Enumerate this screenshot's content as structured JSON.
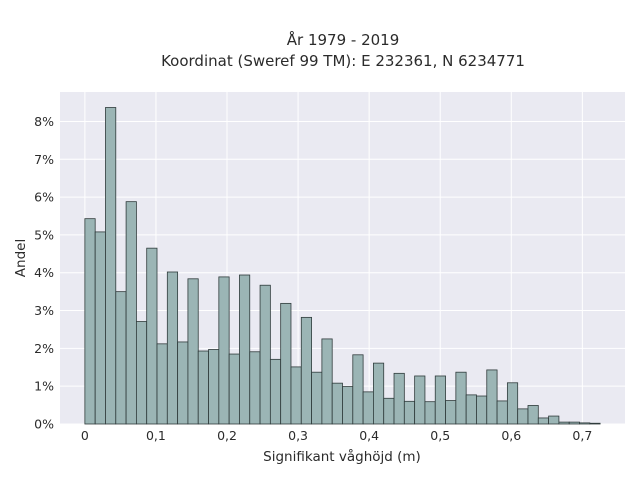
{
  "chart_data": {
    "type": "bar",
    "title_lines": [
      "År 1979 - 2019",
      "Koordinat (Sweref 99 TM): E 232361, N 6234771"
    ],
    "xlabel": "Signifikant våghöjd (m)",
    "ylabel": "Andel",
    "xlim": [
      -0.035,
      0.76
    ],
    "ylim": [
      0,
      0.0878
    ],
    "bin_width": 0.0145,
    "x_ticks": [
      0,
      0.1,
      0.2,
      0.3,
      0.4,
      0.5,
      0.6,
      0.7
    ],
    "x_tick_labels": [
      "0",
      "0,1",
      "0,2",
      "0,3",
      "0,4",
      "0,5",
      "0,6",
      "0,7"
    ],
    "y_ticks": [
      0,
      0.01,
      0.02,
      0.03,
      0.04,
      0.05,
      0.06,
      0.07,
      0.08
    ],
    "y_tick_labels": [
      "0%",
      "1%",
      "2%",
      "3%",
      "4%",
      "5%",
      "6%",
      "7%",
      "8%"
    ],
    "grid": true,
    "bins_start": [
      0,
      0.0145,
      0.029,
      0.0435,
      0.058,
      0.0725,
      0.087,
      0.1015,
      0.116,
      0.1305,
      0.145,
      0.1595,
      0.174,
      0.1885,
      0.203,
      0.2175,
      0.232,
      0.2465,
      0.261,
      0.2755,
      0.29,
      0.3045,
      0.319,
      0.3335,
      0.348,
      0.3625,
      0.377,
      0.3915,
      0.406,
      0.4205,
      0.435,
      0.4495,
      0.464,
      0.4785,
      0.493,
      0.5075,
      0.522,
      0.5365,
      0.551,
      0.5655,
      0.58,
      0.5945,
      0.609,
      0.6235,
      0.638,
      0.6525,
      0.667,
      0.6815,
      0.696,
      0.7105
    ],
    "values": [
      0.0543,
      0.0508,
      0.0837,
      0.035,
      0.0588,
      0.0271,
      0.0465,
      0.0212,
      0.0402,
      0.0217,
      0.0384,
      0.0193,
      0.0197,
      0.0389,
      0.0185,
      0.0394,
      0.0191,
      0.0367,
      0.0171,
      0.0319,
      0.0151,
      0.0282,
      0.0137,
      0.0225,
      0.0108,
      0.0099,
      0.0183,
      0.0085,
      0.0161,
      0.0068,
      0.0134,
      0.006,
      0.0127,
      0.0059,
      0.0127,
      0.0062,
      0.0137,
      0.0077,
      0.0074,
      0.0143,
      0.0061,
      0.0109,
      0.004,
      0.0049,
      0.0016,
      0.0021,
      0.0005,
      0.0005,
      0.0003,
      0.0002
    ]
  }
}
